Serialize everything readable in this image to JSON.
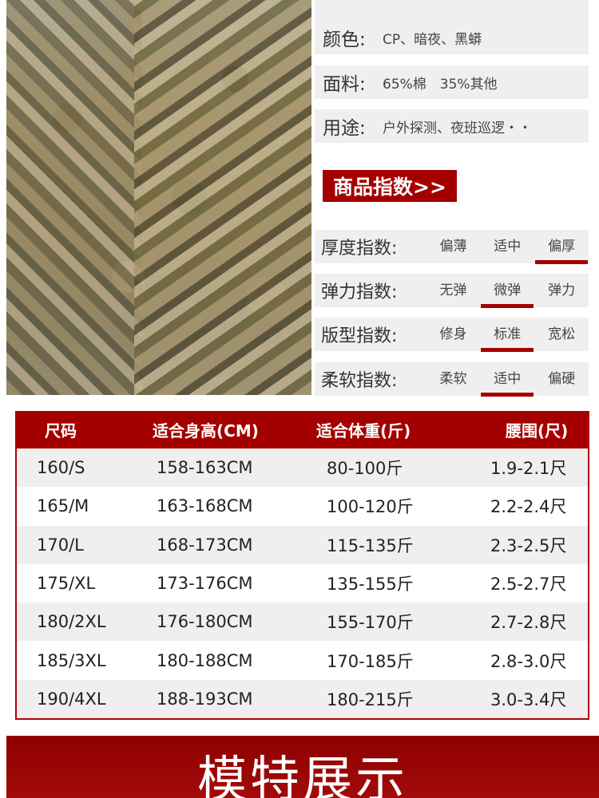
{
  "product_info": [
    {
      "label": "颜色:",
      "value": "CP、暗夜、黑蟒"
    },
    {
      "label": "面料:",
      "value": "65%棉　35%其他"
    },
    {
      "label": "用途:",
      "value": "户外探测、夜班巡逻・・"
    }
  ],
  "index_button": "商品指数>>",
  "indices": [
    {
      "label": "厚度指数:",
      "options": [
        "偏薄",
        "适中",
        "偏厚"
      ],
      "selected": 2
    },
    {
      "label": "弹力指数:",
      "options": [
        "无弹",
        "微弹",
        "弹力"
      ],
      "selected": 1
    },
    {
      "label": "版型指数:",
      "options": [
        "修身",
        "标准",
        "宽松"
      ],
      "selected": 1
    },
    {
      "label": "柔软指数:",
      "options": [
        "柔软",
        "适中",
        "偏硬"
      ],
      "selected": 1
    }
  ],
  "size_table": {
    "headers": [
      "尺码",
      "适合身高(CM)",
      "适合体重(斤)",
      "腰围(尺)"
    ],
    "rows": [
      [
        "160/S",
        "158-163CM",
        "80-100斤",
        "1.9-2.1尺"
      ],
      [
        "165/M",
        "163-168CM",
        "100-120斤",
        "2.2-2.4尺"
      ],
      [
        "170/L",
        "168-173CM",
        "115-135斤",
        "2.3-2.5尺"
      ],
      [
        "175/XL",
        "173-176CM",
        "135-155斤",
        "2.5-2.7尺"
      ],
      [
        "180/2XL",
        "176-180CM",
        "155-170斤",
        "2.7-2.8尺"
      ],
      [
        "185/3XL",
        "180-188CM",
        "170-185斤",
        "2.8-3.0尺"
      ],
      [
        "190/4XL",
        "188-193CM",
        "180-215斤",
        "3.0-3.4尺"
      ]
    ]
  },
  "banner": "模特展示",
  "colors": {
    "accent": "#a50000",
    "row_bg": "#efefef"
  }
}
